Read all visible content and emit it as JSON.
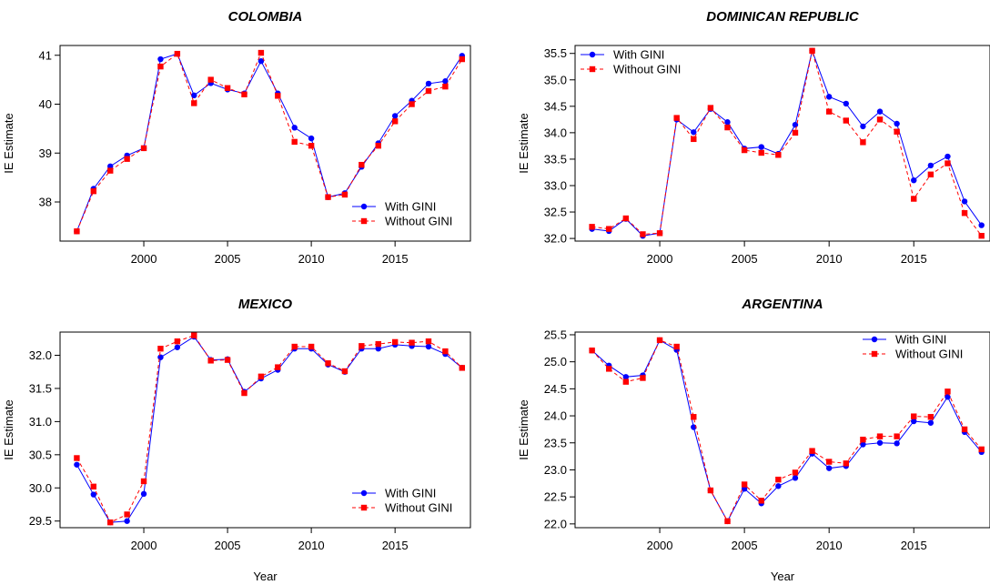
{
  "colors": {
    "with_gini": "#0000ff",
    "without_gini": "#ff0000"
  },
  "chart_data": [
    {
      "type": "line",
      "title": "COLOMBIA",
      "xlabel": "",
      "ylabel": "IE Estimate",
      "xlim": [
        1995,
        2019.5
      ],
      "ylim": [
        37.2,
        41.2
      ],
      "xticks": [
        2000,
        2005,
        2010,
        2015
      ],
      "yticks": [
        38,
        39,
        40,
        41
      ],
      "ytick_labels": [
        "38",
        "39",
        "40",
        "41"
      ],
      "legend": {
        "position": "bottom-right",
        "entries": [
          "With GINI",
          "Without GINI"
        ]
      },
      "x": [
        1996,
        1997,
        1998,
        1999,
        2000,
        2001,
        2002,
        2003,
        2004,
        2005,
        2006,
        2007,
        2008,
        2009,
        2010,
        2011,
        2012,
        2013,
        2014,
        2015,
        2016,
        2017,
        2018,
        2019
      ],
      "series": [
        {
          "name": "With GINI",
          "marker": "circle",
          "values": [
            37.4,
            38.27,
            38.73,
            38.95,
            39.1,
            40.92,
            41.03,
            40.18,
            40.43,
            40.3,
            40.22,
            40.88,
            40.22,
            39.52,
            39.3,
            38.1,
            38.18,
            38.72,
            39.2,
            39.76,
            40.07,
            40.42,
            40.47,
            40.99
          ]
        },
        {
          "name": "Without GINI",
          "marker": "square",
          "values": [
            37.4,
            38.22,
            38.64,
            38.88,
            39.1,
            40.77,
            41.03,
            40.02,
            40.5,
            40.33,
            40.2,
            41.05,
            40.17,
            39.23,
            39.15,
            38.1,
            38.15,
            38.76,
            39.15,
            39.65,
            40.0,
            40.27,
            40.36,
            40.92
          ]
        }
      ]
    },
    {
      "type": "line",
      "title": "DOMINICAN REPUBLIC",
      "xlabel": "",
      "ylabel": "IE Estimate",
      "xlim": [
        1995,
        2019.5
      ],
      "ylim": [
        31.95,
        35.65
      ],
      "xticks": [
        2000,
        2005,
        2010,
        2015
      ],
      "yticks": [
        32.0,
        32.5,
        33.0,
        33.5,
        34.0,
        34.5,
        35.0,
        35.5
      ],
      "ytick_labels": [
        "32.0",
        "32.5",
        "33.0",
        "33.5",
        "34.0",
        "34.5",
        "35.0",
        "35.5"
      ],
      "legend": {
        "position": "top-left",
        "entries": [
          "With GINI",
          "Without GINI"
        ]
      },
      "x": [
        1996,
        1997,
        1998,
        1999,
        2000,
        2001,
        2002,
        2003,
        2004,
        2005,
        2006,
        2007,
        2008,
        2009,
        2010,
        2011,
        2012,
        2013,
        2014,
        2015,
        2016,
        2017,
        2018,
        2019
      ],
      "series": [
        {
          "name": "With GINI",
          "marker": "circle",
          "values": [
            32.18,
            32.14,
            32.37,
            32.05,
            32.1,
            34.25,
            34.01,
            34.45,
            34.2,
            33.7,
            33.73,
            33.6,
            34.15,
            35.55,
            34.68,
            34.55,
            34.12,
            34.4,
            34.17,
            33.1,
            33.38,
            33.55,
            32.7,
            32.25
          ]
        },
        {
          "name": "Without GINI",
          "marker": "square",
          "values": [
            32.22,
            32.18,
            32.38,
            32.08,
            32.1,
            34.28,
            33.88,
            34.47,
            34.1,
            33.67,
            33.62,
            33.58,
            34.0,
            35.55,
            34.4,
            34.23,
            33.82,
            34.25,
            34.02,
            32.75,
            33.21,
            33.42,
            32.48,
            32.05
          ]
        }
      ]
    },
    {
      "type": "line",
      "title": "MEXICO",
      "xlabel": "Year",
      "ylabel": "IE Estimate",
      "xlim": [
        1995,
        2019.5
      ],
      "ylim": [
        29.4,
        32.35
      ],
      "xticks": [
        2000,
        2005,
        2010,
        2015
      ],
      "yticks": [
        29.5,
        30.0,
        30.5,
        31.0,
        31.5,
        32.0
      ],
      "ytick_labels": [
        "29.5",
        "30.0",
        "30.5",
        "31.0",
        "31.5",
        "32.0"
      ],
      "legend": {
        "position": "bottom-right",
        "entries": [
          "With GINI",
          "Without GINI"
        ]
      },
      "x": [
        1996,
        1997,
        1998,
        1999,
        2000,
        2001,
        2002,
        2003,
        2004,
        2005,
        2006,
        2007,
        2008,
        2009,
        2010,
        2011,
        2012,
        2013,
        2014,
        2015,
        2016,
        2017,
        2018,
        2019
      ],
      "series": [
        {
          "name": "With GINI",
          "marker": "circle",
          "values": [
            30.35,
            29.9,
            29.48,
            29.5,
            29.91,
            31.97,
            32.12,
            32.28,
            31.93,
            31.94,
            31.45,
            31.65,
            31.78,
            32.1,
            32.1,
            31.86,
            31.75,
            32.1,
            32.1,
            32.16,
            32.14,
            32.13,
            32.02,
            31.81
          ]
        },
        {
          "name": "Without GINI",
          "marker": "square",
          "values": [
            30.45,
            30.02,
            29.48,
            29.6,
            30.1,
            32.1,
            32.21,
            32.3,
            31.92,
            31.93,
            31.43,
            31.68,
            31.82,
            32.13,
            32.13,
            31.88,
            31.76,
            32.14,
            32.17,
            32.2,
            32.19,
            32.21,
            32.06,
            31.81
          ]
        }
      ]
    },
    {
      "type": "line",
      "title": "ARGENTINA",
      "xlabel": "Year",
      "ylabel": "IE Estimate",
      "xlim": [
        1995,
        2019.5
      ],
      "ylim": [
        21.93,
        25.55
      ],
      "xticks": [
        2000,
        2005,
        2010,
        2015
      ],
      "yticks": [
        22.0,
        22.5,
        23.0,
        23.5,
        24.0,
        24.5,
        25.0,
        25.5
      ],
      "ytick_labels": [
        "22.0",
        "22.5",
        "23.0",
        "23.5",
        "24.0",
        "24.5",
        "25.0",
        "25.5"
      ],
      "legend": {
        "position": "top-right",
        "entries": [
          "With GINI",
          "Without GINI"
        ]
      },
      "x": [
        1996,
        1997,
        1998,
        1999,
        2000,
        2001,
        2002,
        2003,
        2004,
        2005,
        2006,
        2007,
        2008,
        2009,
        2010,
        2011,
        2012,
        2013,
        2014,
        2015,
        2016,
        2017,
        2018,
        2019
      ],
      "series": [
        {
          "name": "With GINI",
          "marker": "circle",
          "values": [
            25.21,
            24.93,
            24.72,
            24.75,
            25.4,
            25.22,
            23.79,
            22.62,
            22.05,
            22.65,
            22.38,
            22.7,
            22.85,
            23.3,
            23.03,
            23.07,
            23.47,
            23.5,
            23.49,
            23.9,
            23.87,
            24.35,
            23.7,
            23.33
          ]
        },
        {
          "name": "Without GINI",
          "marker": "square",
          "values": [
            25.21,
            24.87,
            24.63,
            24.7,
            25.4,
            25.28,
            23.98,
            22.62,
            22.05,
            22.73,
            22.43,
            22.82,
            22.95,
            23.35,
            23.15,
            23.12,
            23.56,
            23.62,
            23.62,
            23.99,
            23.98,
            24.45,
            23.75,
            23.38
          ]
        }
      ]
    }
  ]
}
